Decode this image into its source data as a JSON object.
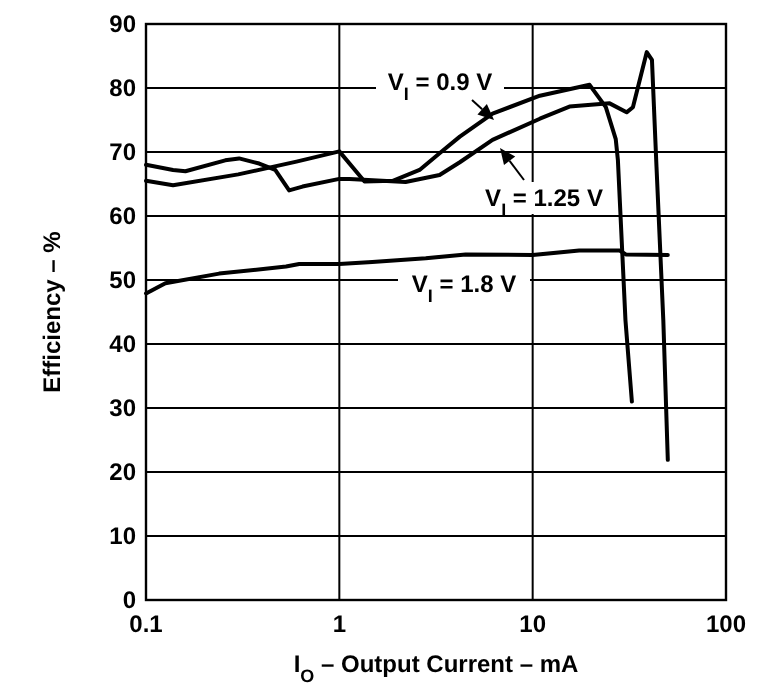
{
  "chart_data": {
    "type": "line",
    "xlabel": "I$_{O}$ – Output Current – mA",
    "ylabel": "Efficiency – %",
    "log": "x",
    "xlim": [
      0.1,
      100
    ],
    "xticks": [
      0.1,
      1,
      10,
      100
    ],
    "ylim": [
      0,
      90
    ],
    "yticks": [
      0,
      10,
      20,
      30,
      40,
      50,
      60,
      70,
      80,
      90
    ],
    "grid": true,
    "marker": "none",
    "line_style": "solid",
    "series": [
      {
        "name": "V$_{I}$ = 0.9 V",
        "color": "#000000",
        "x": [
          0.1,
          0.138,
          0.3,
          0.6,
          1.0,
          1.35,
          1.89,
          2.6,
          3.3,
          4.2,
          6.2,
          10.9,
          19.7,
          23.9,
          26.9,
          27.6,
          30.2,
          32.6
        ],
        "values": [
          65.5,
          64.8,
          66.5,
          68.5,
          70.1,
          65.4,
          65.5,
          67.2,
          69.8,
          72.4,
          76,
          78.8,
          80.5,
          77,
          72,
          68.7,
          43.7,
          31
        ]
      },
      {
        "name": "V$_{I}$ = 1.25 V",
        "color": "#000000",
        "x": [
          0.1,
          0.138,
          0.16,
          0.257,
          0.303,
          0.385,
          0.466,
          0.55,
          0.645,
          1.0,
          1.13,
          2.2,
          3.3,
          4.2,
          6.2,
          10.9,
          15.5,
          25,
          30.6,
          33,
          38.9,
          41.4,
          43.7,
          47.4,
          50
        ],
        "values": [
          68,
          67.2,
          67,
          68.7,
          69,
          68.2,
          67.2,
          64,
          64.6,
          65.8,
          65.8,
          65.3,
          66.4,
          68.4,
          71.9,
          75.2,
          77.1,
          77.6,
          76.2,
          77,
          85.6,
          84.4,
          67.7,
          43.7,
          21.9
        ]
      },
      {
        "name": "V$_{I}$ = 1.8 V",
        "color": "#000000",
        "x": [
          0.1,
          0.126,
          0.239,
          0.53,
          0.62,
          1.0,
          1.48,
          2.8,
          4.5,
          10,
          17.4,
          28.2,
          30.3,
          50
        ],
        "values": [
          47.9,
          49.5,
          51,
          52.1,
          52.5,
          52.5,
          52.8,
          53.4,
          54,
          53.9,
          54.6,
          54.6,
          54,
          53.9
        ]
      }
    ]
  }
}
